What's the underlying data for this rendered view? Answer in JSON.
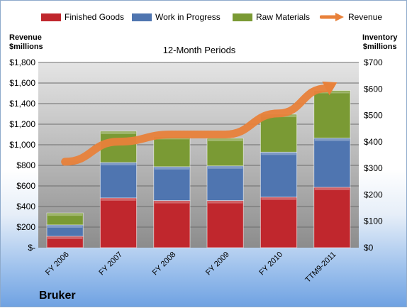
{
  "chart_data": {
    "type": "bar",
    "stacked": true,
    "title": "12-Month Periods",
    "categories": [
      "FY 2006",
      "FY 2007",
      "FY 2008",
      "FY 2009",
      "FY 2010",
      "TTM9-2011"
    ],
    "series": [
      {
        "name": "Finished Goods",
        "axis": "right",
        "color": "#c0272d",
        "values": [
          43,
          188,
          178,
          178,
          191,
          228
        ]
      },
      {
        "name": "Work in Progress",
        "axis": "right",
        "color": "#4f75b0",
        "values": [
          43,
          134,
          128,
          131,
          170,
          186
        ]
      },
      {
        "name": "Raw Materials",
        "axis": "right",
        "color": "#7a9a34",
        "values": [
          45,
          118,
          114,
          104,
          143,
          180
        ]
      }
    ],
    "line_series": {
      "name": "Revenue",
      "axis": "left",
      "type": "arrow",
      "color": "#e8813a",
      "values": [
        835,
        1030,
        1100,
        1100,
        1305,
        1580
      ]
    },
    "left_axis": {
      "label": "Revenue $millions",
      "ylim": [
        0,
        1800
      ],
      "ticks": [
        "$-",
        "$200",
        "$400",
        "$600",
        "$800",
        "$1,000",
        "$1,200",
        "$1,400",
        "$1,600",
        "$1,800"
      ]
    },
    "right_axis": {
      "label": "Inventory $millions",
      "ylim": [
        0,
        700
      ],
      "ticks": [
        "$0",
        "$100",
        "$200",
        "$300",
        "$400",
        "$500",
        "$600",
        "$700"
      ]
    },
    "legend_position": "top"
  },
  "company": "Bruker",
  "labels": {
    "left_axis_line1": "Revenue",
    "left_axis_line2": "$millions",
    "right_axis_line1": "Inventory",
    "right_axis_line2": "$millions"
  }
}
